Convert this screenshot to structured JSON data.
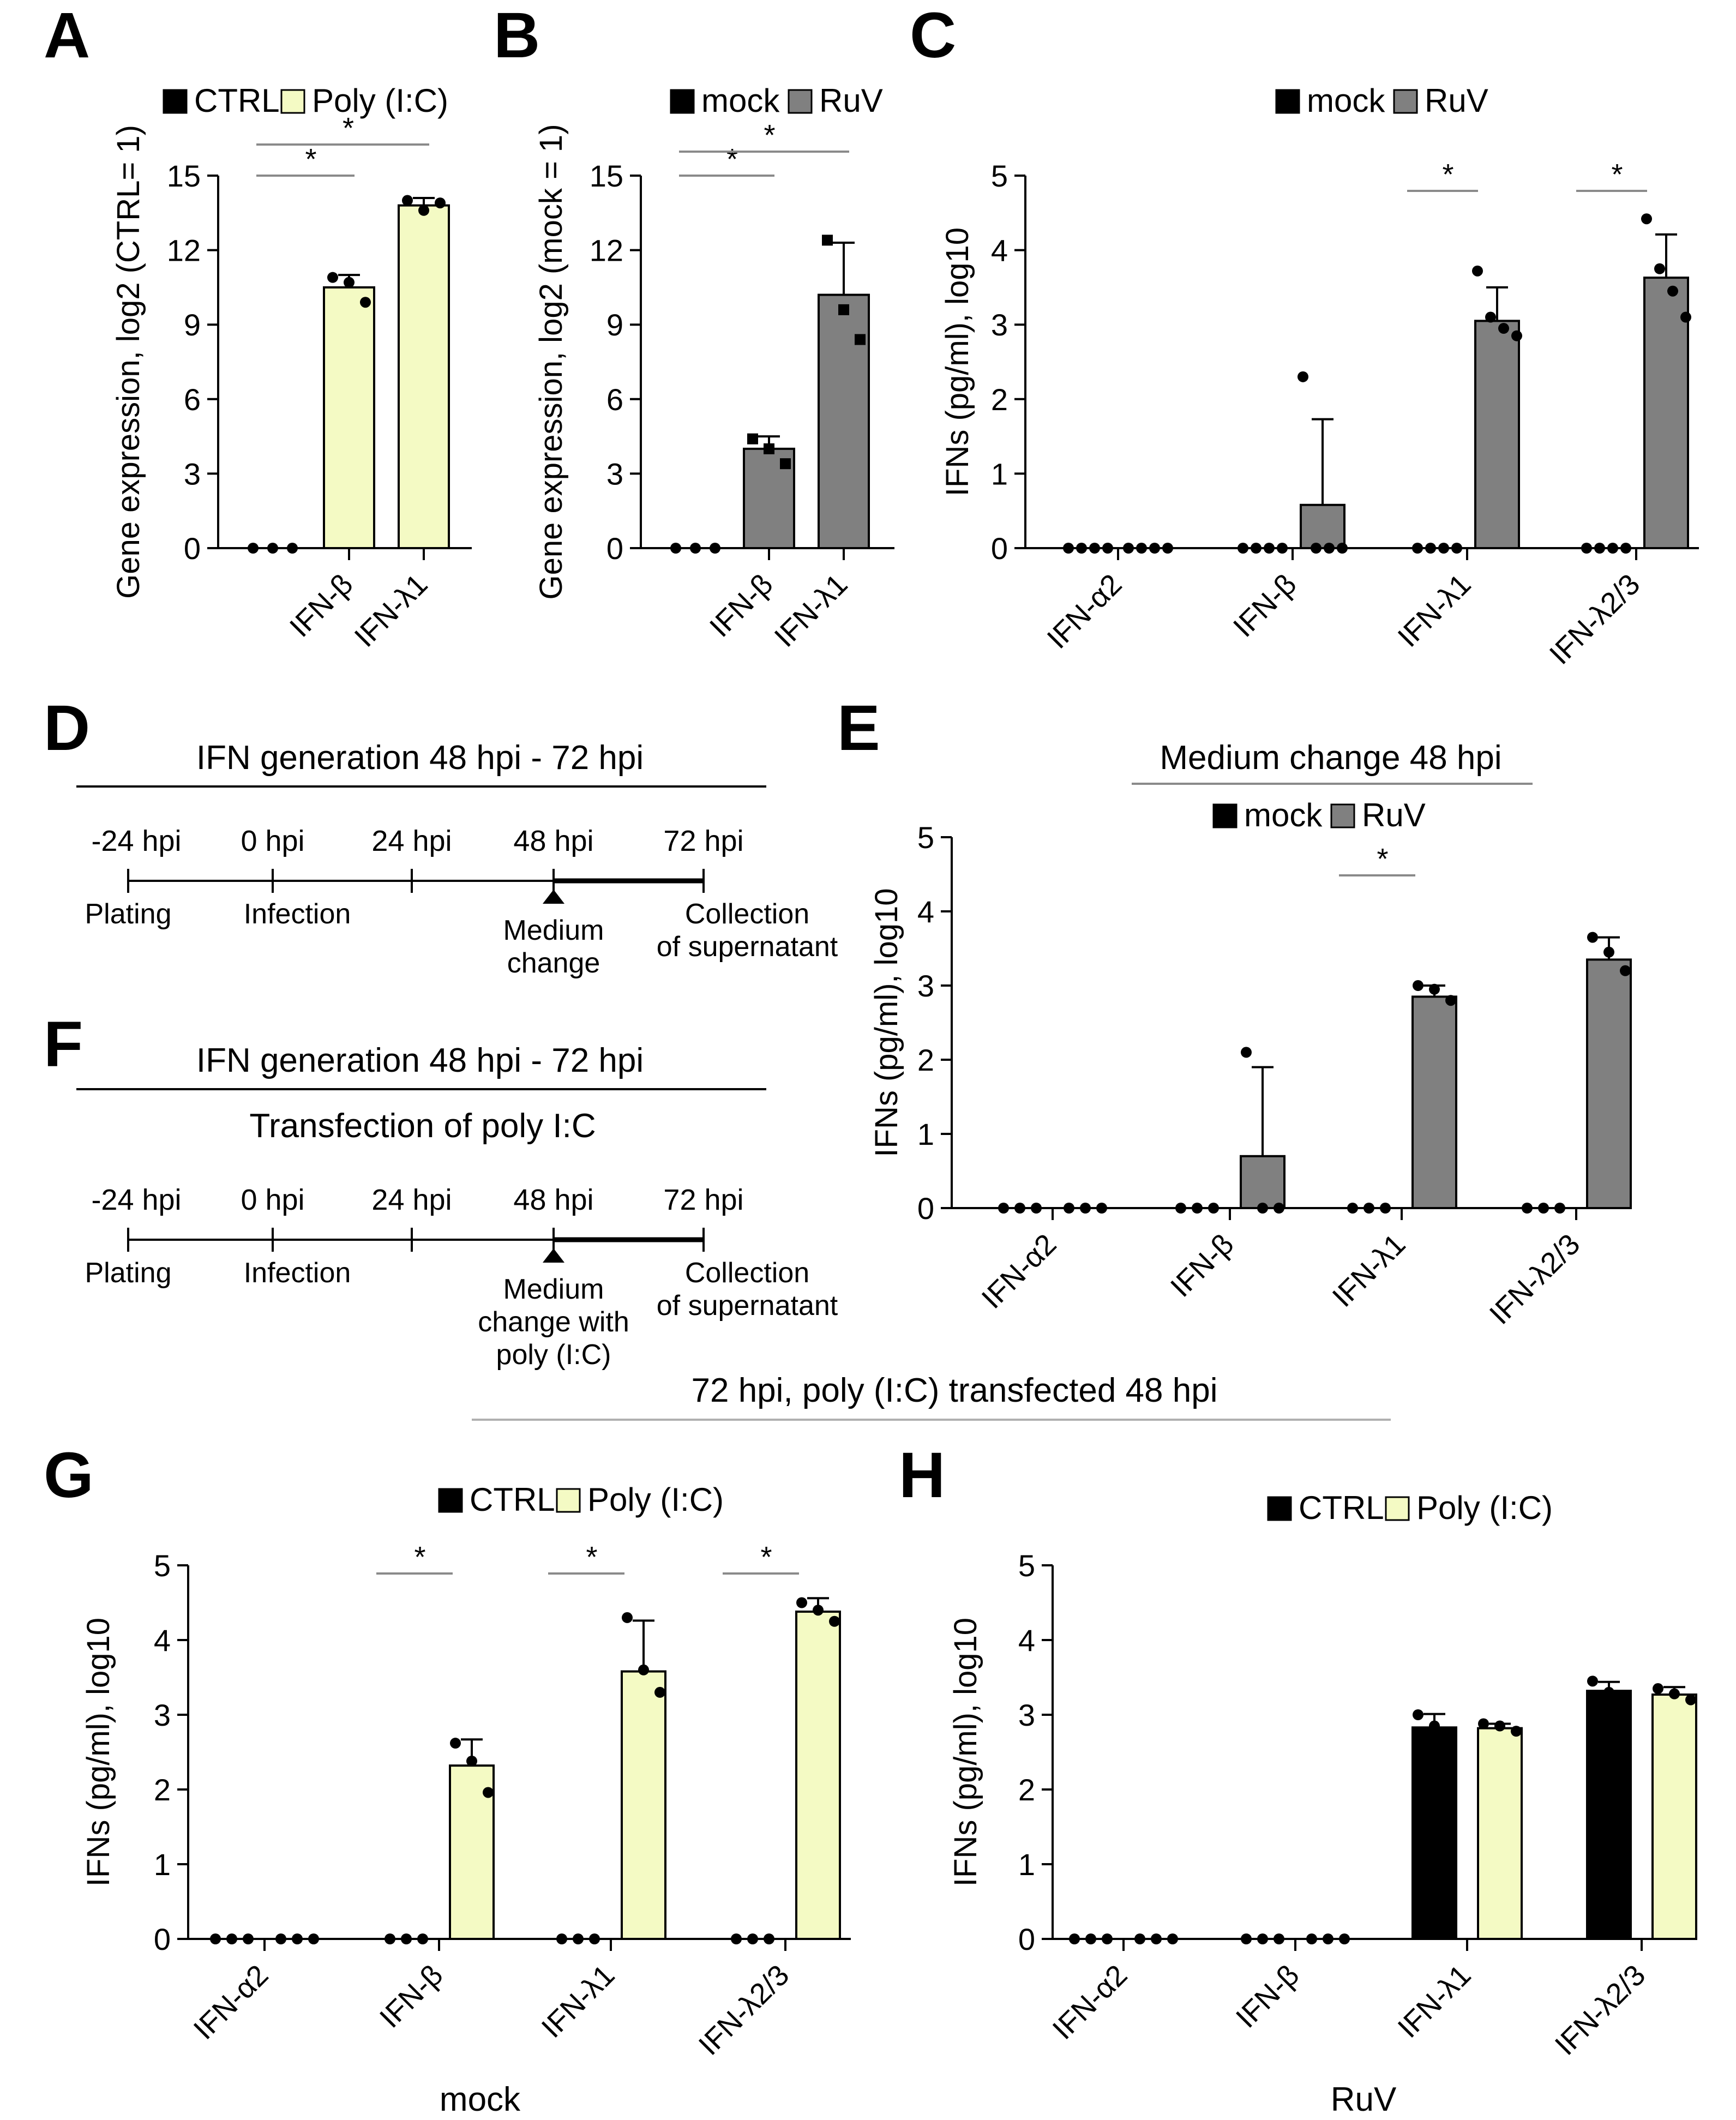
{
  "panels": {
    "A": "A",
    "B": "B",
    "C": "C",
    "D": "D",
    "E": "E",
    "F": "F",
    "G": "G",
    "H": "H"
  },
  "colors": {
    "mock_ctrl": "#000000",
    "ruv": "#808080",
    "polyic": "#f4fac4",
    "bar_edge": "#000000"
  },
  "chart_data": [
    {
      "panel": "A",
      "type": "bar",
      "legend": [
        "CTRL",
        "Poly (I:C)"
      ],
      "categories": [
        "IFN-β",
        "IFN-λ1"
      ],
      "ylabel": "Gene expression, log2 (CTRL= 1)",
      "ylim": [
        0,
        15
      ],
      "yticks": [
        "0",
        "3",
        "6",
        "9",
        "12",
        "15"
      ],
      "series": [
        {
          "name": "CTRL",
          "values": [
            null,
            null
          ],
          "points": [
            [
              0,
              0,
              0
            ]
          ]
        },
        {
          "name": "Poly (I:C)",
          "values": [
            10.5,
            13.8
          ],
          "errors": [
            0.5,
            0.3
          ],
          "points": [
            [
              10.9,
              10.7,
              9.9
            ],
            [
              14.0,
              13.6,
              13.9
            ]
          ]
        }
      ],
      "control_points": [
        0,
        0,
        0
      ],
      "significance": [
        {
          "from": "CTRL",
          "to": "IFN-β",
          "label": "*"
        },
        {
          "from": "CTRL",
          "to": "IFN-λ1",
          "label": "*"
        }
      ]
    },
    {
      "panel": "B",
      "type": "bar",
      "legend": [
        "mock",
        "RuV"
      ],
      "categories": [
        "IFN-β",
        "IFN-λ1"
      ],
      "ylabel": "Gene expression, log2 (mock = 1)",
      "ylim": [
        0,
        15
      ],
      "yticks": [
        "0",
        "3",
        "6",
        "9",
        "12",
        "15"
      ],
      "control_points": [
        0,
        0,
        0
      ],
      "series": [
        {
          "name": "RuV",
          "values": [
            4.0,
            10.2
          ],
          "errors": [
            0.5,
            2.1
          ],
          "points": [
            [
              4.4,
              4.0,
              3.4
            ],
            [
              12.4,
              9.6,
              8.4
            ]
          ]
        }
      ],
      "significance": [
        {
          "from": "mock",
          "to": "IFN-β",
          "label": "*"
        },
        {
          "from": "mock",
          "to": "IFN-λ1",
          "label": "*"
        }
      ]
    },
    {
      "panel": "C",
      "type": "bar",
      "legend": [
        "mock",
        "RuV"
      ],
      "categories": [
        "IFN-α2",
        "IFN-β",
        "IFN-λ1",
        "IFN-λ2/3"
      ],
      "ylabel": "IFNs (pg/ml), log10",
      "ylim": [
        0,
        5
      ],
      "yticks": [
        "0",
        "1",
        "2",
        "3",
        "4",
        "5"
      ],
      "series": [
        {
          "name": "mock",
          "values": [
            0,
            0,
            0,
            0
          ],
          "points": [
            [
              0,
              0,
              0,
              0
            ],
            [
              0,
              0,
              0,
              0
            ],
            [
              0,
              0,
              0,
              0
            ],
            [
              0,
              0,
              0,
              0
            ]
          ]
        },
        {
          "name": "RuV",
          "values": [
            0,
            0.58,
            3.05,
            3.63
          ],
          "errors": [
            0,
            1.15,
            0.45,
            0.58
          ],
          "points": [
            [
              0,
              0,
              0,
              0
            ],
            [
              2.3,
              0,
              0,
              0
            ],
            [
              3.72,
              3.1,
              2.95,
              2.85
            ],
            [
              4.42,
              3.75,
              3.45,
              3.1
            ]
          ]
        }
      ],
      "significance": [
        {
          "category": "IFN-λ1",
          "label": "*"
        },
        {
          "category": "IFN-λ2/3",
          "label": "*"
        }
      ]
    },
    {
      "panel": "E",
      "type": "bar",
      "title": "Medium change 48 hpi",
      "legend": [
        "mock",
        "RuV"
      ],
      "categories": [
        "IFN-α2",
        "IFN-β",
        "IFN-λ1",
        "IFN-λ2/3"
      ],
      "ylabel": "IFNs (pg/ml), log10",
      "ylim": [
        0,
        5
      ],
      "yticks": [
        "0",
        "1",
        "2",
        "3",
        "4",
        "5"
      ],
      "series": [
        {
          "name": "mock",
          "values": [
            0,
            0,
            0,
            0
          ],
          "points": [
            [
              0,
              0,
              0
            ],
            [
              0,
              0,
              0
            ],
            [
              0,
              0,
              0
            ],
            [
              0,
              0,
              0
            ]
          ]
        },
        {
          "name": "RuV",
          "values": [
            0,
            0.7,
            2.85,
            3.35
          ],
          "errors": [
            0,
            1.2,
            0.15,
            0.3
          ],
          "points": [
            [
              0,
              0,
              0
            ],
            [
              2.1,
              0,
              0
            ],
            [
              3.0,
              2.95,
              2.8
            ],
            [
              3.65,
              3.45,
              3.2
            ]
          ]
        }
      ],
      "significance": [
        {
          "category": "IFN-λ1",
          "label": "*"
        }
      ]
    },
    {
      "panel": "G",
      "type": "bar",
      "title": "72 hpi, poly (I:C) transfected 48 hpi",
      "legend": [
        "CTRL",
        "Poly (I:C)"
      ],
      "categories": [
        "IFN-α2",
        "IFN-β",
        "IFN-λ1",
        "IFN-λ2/3"
      ],
      "xlabel": "mock",
      "ylabel": "IFNs (pg/ml), log10",
      "ylim": [
        0,
        5
      ],
      "yticks": [
        "0",
        "1",
        "2",
        "3",
        "4",
        "5"
      ],
      "series": [
        {
          "name": "CTRL",
          "values": [
            0,
            0,
            0,
            0
          ],
          "points": [
            [
              0,
              0,
              0
            ],
            [
              0,
              0,
              0
            ],
            [
              0,
              0,
              0
            ],
            [
              0,
              0,
              0
            ]
          ]
        },
        {
          "name": "Poly (I:C)",
          "values": [
            0,
            2.32,
            3.58,
            4.38
          ],
          "errors": [
            0,
            0.35,
            0.68,
            0.18
          ],
          "points": [
            [
              0,
              0,
              0
            ],
            [
              2.62,
              2.38,
              1.96
            ],
            [
              4.3,
              3.6,
              3.3
            ],
            [
              4.5,
              4.4,
              4.25
            ]
          ]
        }
      ],
      "significance": [
        {
          "category": "IFN-β",
          "label": "*"
        },
        {
          "category": "IFN-λ1",
          "label": "*"
        },
        {
          "category": "IFN-λ2/3",
          "label": "*"
        }
      ]
    },
    {
      "panel": "H",
      "type": "bar",
      "legend": [
        "CTRL",
        "Poly (I:C)"
      ],
      "categories": [
        "IFN-α2",
        "IFN-β",
        "IFN-λ1",
        "IFN-λ2/3"
      ],
      "xlabel": "RuV",
      "ylabel": "IFNs (pg/ml), log10",
      "ylim": [
        0,
        5
      ],
      "yticks": [
        "0",
        "1",
        "2",
        "3",
        "4",
        "5"
      ],
      "series": [
        {
          "name": "CTRL",
          "values": [
            0,
            0,
            2.83,
            3.32
          ],
          "errors": [
            0,
            0,
            0.18,
            0.12
          ],
          "points": [
            [
              0,
              0,
              0
            ],
            [
              0,
              0,
              0
            ],
            [
              3.0,
              2.85,
              2.72
            ],
            [
              3.45,
              3.3,
              3.25
            ]
          ]
        },
        {
          "name": "Poly (I:C)",
          "values": [
            0,
            0,
            2.82,
            3.27
          ],
          "errors": [
            0,
            0,
            0.06,
            0.1
          ],
          "points": [
            [
              0,
              0,
              0
            ],
            [
              0,
              0,
              0
            ],
            [
              2.88,
              2.85,
              2.78
            ],
            [
              3.35,
              3.28,
              3.2
            ]
          ]
        }
      ],
      "significance": []
    }
  ],
  "diagram_D": {
    "title": "IFN generation 48 hpi - 72 hpi",
    "ticks": [
      "-24 hpi",
      "0 hpi",
      "24 hpi",
      "48 hpi",
      "72 hpi"
    ],
    "events": [
      "Plating",
      "Infection",
      "",
      "Medium\nchange",
      "Collection\nof supernatant"
    ]
  },
  "diagram_F": {
    "title": "IFN generation 48 hpi - 72 hpi",
    "subtitle": "Transfection of poly I:C",
    "ticks": [
      "-24 hpi",
      "0 hpi",
      "24 hpi",
      "48 hpi",
      "72 hpi"
    ],
    "events": [
      "Plating",
      "Infection",
      "",
      "Medium\nchange with\npoly (I:C)",
      "Collection\nof supernatant"
    ]
  }
}
